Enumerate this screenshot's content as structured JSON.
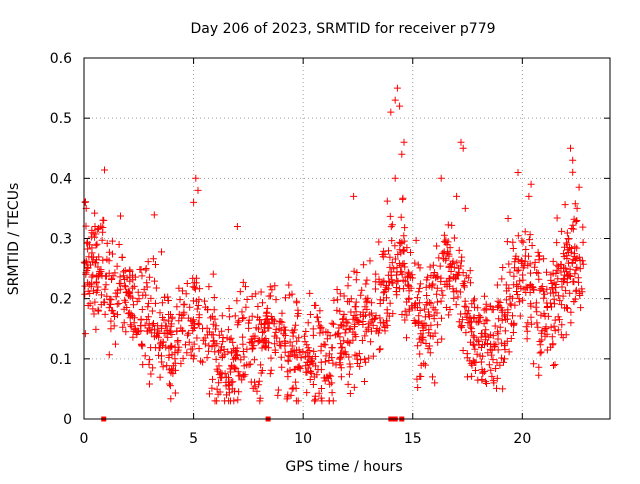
{
  "chart_data": {
    "type": "scatter",
    "title": "Day 206 of 2023, SRMTID for receiver p779",
    "xlabel": "GPS time / hours",
    "ylabel": "SRMTID / TECUs",
    "xlim": [
      0,
      24
    ],
    "ylim": [
      0,
      0.6
    ],
    "x_ticks": [
      0,
      5,
      10,
      15,
      20
    ],
    "x_tick_labels": [
      "0",
      "5",
      "10",
      "15",
      "20"
    ],
    "y_ticks": [
      0,
      0.1,
      0.2,
      0.3,
      0.4,
      0.5,
      0.6
    ],
    "y_tick_labels": [
      "0",
      "0.1",
      "0.2",
      "0.3",
      "0.4",
      "0.5",
      "0.6"
    ],
    "grid": true,
    "marker": "plus",
    "series_color": "#ff0000",
    "series": [
      {
        "name": "SRMTID",
        "profile": [
          [
            0.0,
            0.24
          ],
          [
            0.5,
            0.25
          ],
          [
            1.0,
            0.22
          ],
          [
            1.5,
            0.21
          ],
          [
            2.0,
            0.2
          ],
          [
            2.5,
            0.18
          ],
          [
            3.0,
            0.15
          ],
          [
            3.5,
            0.14
          ],
          [
            4.0,
            0.13
          ],
          [
            4.5,
            0.14
          ],
          [
            5.0,
            0.18
          ],
          [
            5.5,
            0.15
          ],
          [
            6.0,
            0.13
          ],
          [
            6.5,
            0.09
          ],
          [
            7.0,
            0.13
          ],
          [
            7.5,
            0.15
          ],
          [
            8.0,
            0.12
          ],
          [
            8.5,
            0.14
          ],
          [
            9.0,
            0.13
          ],
          [
            9.5,
            0.11
          ],
          [
            10.0,
            0.1
          ],
          [
            10.5,
            0.1
          ],
          [
            11.0,
            0.11
          ],
          [
            11.5,
            0.12
          ],
          [
            12.0,
            0.14
          ],
          [
            12.5,
            0.16
          ],
          [
            13.0,
            0.17
          ],
          [
            13.5,
            0.2
          ],
          [
            14.0,
            0.24
          ],
          [
            14.5,
            0.27
          ],
          [
            15.0,
            0.18
          ],
          [
            15.5,
            0.14
          ],
          [
            16.0,
            0.21
          ],
          [
            16.5,
            0.26
          ],
          [
            17.0,
            0.24
          ],
          [
            17.5,
            0.16
          ],
          [
            18.0,
            0.13
          ],
          [
            18.5,
            0.12
          ],
          [
            19.0,
            0.16
          ],
          [
            19.5,
            0.21
          ],
          [
            20.0,
            0.24
          ],
          [
            20.5,
            0.2
          ],
          [
            21.0,
            0.18
          ],
          [
            21.5,
            0.2
          ],
          [
            22.0,
            0.24
          ],
          [
            22.5,
            0.25
          ],
          [
            22.8,
            0.24
          ]
        ],
        "spread": 0.045,
        "point_count": 1600,
        "highlights": [
          {
            "x": 0.05,
            "y": 0.36
          },
          {
            "x": 0.1,
            "y": 0.35
          },
          {
            "x": 0.5,
            "y": 0.32
          },
          {
            "x": 0.9,
            "y": 0.33
          },
          {
            "x": 1.6,
            "y": 0.29
          },
          {
            "x": 5.1,
            "y": 0.4
          },
          {
            "x": 5.2,
            "y": 0.38
          },
          {
            "x": 5.0,
            "y": 0.36
          },
          {
            "x": 6.5,
            "y": 0.04
          },
          {
            "x": 6.6,
            "y": 0.03
          },
          {
            "x": 7.0,
            "y": 0.32
          },
          {
            "x": 9.5,
            "y": 0.05
          },
          {
            "x": 11.3,
            "y": 0.06
          },
          {
            "x": 11.5,
            "y": 0.09
          },
          {
            "x": 12.3,
            "y": 0.37
          },
          {
            "x": 14.0,
            "y": 0.51
          },
          {
            "x": 14.2,
            "y": 0.53
          },
          {
            "x": 14.3,
            "y": 0.55
          },
          {
            "x": 14.4,
            "y": 0.52
          },
          {
            "x": 14.5,
            "y": 0.44
          },
          {
            "x": 14.6,
            "y": 0.46
          },
          {
            "x": 14.2,
            "y": 0.4
          },
          {
            "x": 15.9,
            "y": 0.07
          },
          {
            "x": 16.0,
            "y": 0.06
          },
          {
            "x": 16.3,
            "y": 0.4
          },
          {
            "x": 17.2,
            "y": 0.46
          },
          {
            "x": 17.3,
            "y": 0.45
          },
          {
            "x": 17.0,
            "y": 0.37
          },
          {
            "x": 17.4,
            "y": 0.35
          },
          {
            "x": 17.5,
            "y": 0.07
          },
          {
            "x": 18.7,
            "y": 0.06
          },
          {
            "x": 19.1,
            "y": 0.05
          },
          {
            "x": 20.4,
            "y": 0.39
          },
          {
            "x": 20.3,
            "y": 0.37
          },
          {
            "x": 22.2,
            "y": 0.45
          },
          {
            "x": 22.3,
            "y": 0.43
          },
          {
            "x": 22.3,
            "y": 0.41
          },
          {
            "x": 22.5,
            "y": 0.35
          },
          {
            "x": 22.0,
            "y": 0.14
          }
        ],
        "zero_markers": [
          0.9,
          8.4,
          14.0,
          14.1,
          14.2,
          14.5
        ]
      }
    ]
  }
}
